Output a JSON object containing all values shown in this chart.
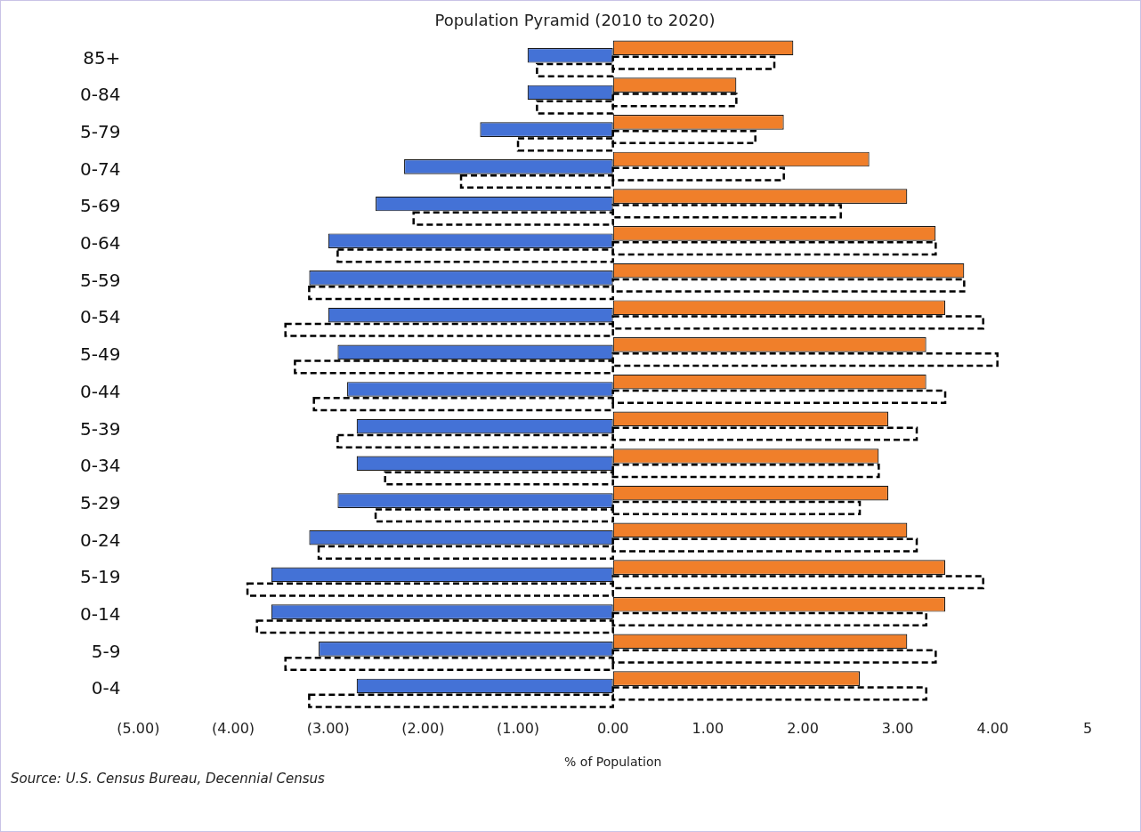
{
  "chart_data": {
    "type": "bar",
    "orientation": "horizontal",
    "title": "Population Pyramid (2010 to 2020)",
    "xlabel": "% of Population",
    "categories": [
      "85+",
      "0-84",
      "5-79",
      "0-74",
      "5-69",
      "0-64",
      "5-59",
      "0-54",
      "5-49",
      "0-44",
      "5-39",
      "0-34",
      "5-29",
      "0-24",
      "5-19",
      "0-14",
      "5-9",
      "0-4"
    ],
    "series": [
      {
        "color": "#f07f2a",
        "line_style": "solid",
        "values": [
          1.9,
          1.3,
          1.8,
          2.7,
          3.1,
          3.4,
          3.7,
          3.5,
          3.3,
          3.3,
          2.9,
          2.8,
          2.9,
          3.1,
          3.5,
          3.5,
          3.1,
          2.6
        ]
      },
      {
        "color": "#4472d6",
        "line_style": "solid",
        "values": [
          -0.9,
          -0.9,
          -1.4,
          -2.2,
          -2.5,
          -3.0,
          -3.2,
          -3.0,
          -2.9,
          -2.8,
          -2.7,
          -2.7,
          -2.9,
          -3.2,
          -3.6,
          -3.6,
          -3.1,
          -2.7
        ]
      },
      {
        "color": "#000000",
        "line_style": "dashed",
        "values": [
          1.7,
          1.3,
          1.5,
          1.8,
          2.4,
          3.4,
          3.7,
          3.9,
          4.05,
          3.5,
          3.2,
          2.8,
          2.6,
          3.2,
          3.9,
          3.3,
          3.4,
          3.3
        ]
      },
      {
        "color": "#000000",
        "line_style": "dashed",
        "values": [
          -0.8,
          -0.8,
          -1.0,
          -1.6,
          -2.1,
          -2.9,
          -3.2,
          -3.45,
          -3.35,
          -3.15,
          -2.9,
          -2.4,
          -2.5,
          -3.1,
          -3.85,
          -3.75,
          -3.45,
          -3.2
        ]
      }
    ],
    "xlim": [
      -5,
      5
    ],
    "xticks": [
      {
        "value": -5,
        "label": "(5.00)"
      },
      {
        "value": -4,
        "label": "(4.00)"
      },
      {
        "value": -3,
        "label": "(3.00)"
      },
      {
        "value": -2,
        "label": "(2.00)"
      },
      {
        "value": -1,
        "label": "(1.00)"
      },
      {
        "value": 0,
        "label": "0.00"
      },
      {
        "value": 1,
        "label": "1.00"
      },
      {
        "value": 2,
        "label": "2.00"
      },
      {
        "value": 3,
        "label": "3.00"
      },
      {
        "value": 4,
        "label": "4.00"
      },
      {
        "value": 5,
        "label": "5"
      }
    ],
    "grid": false,
    "legend": false,
    "annotations": [
      "Source: U.S. Census Bureau, Decennial Census"
    ]
  }
}
